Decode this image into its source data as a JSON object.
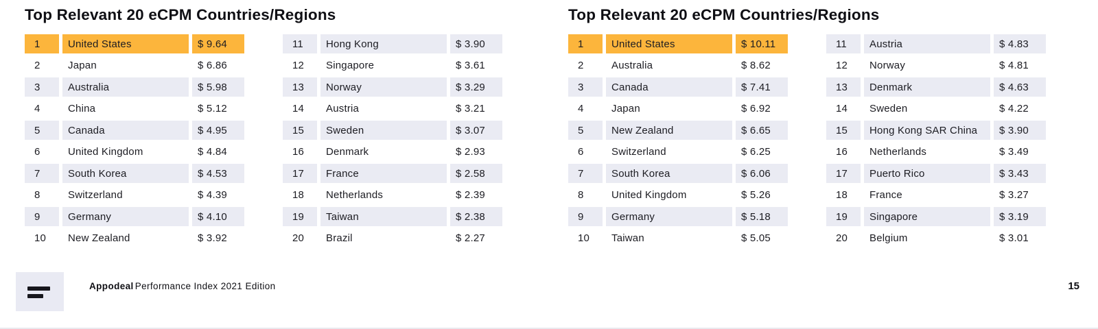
{
  "page": {
    "number": "15"
  },
  "footer": {
    "logo_icon": "appodeal-logo",
    "brand_bold": "Appodeal",
    "brand_rest": "Performance Index 2021 Edition"
  },
  "colors": {
    "highlight_orange": "#FCB53C",
    "row_stripe": "#EAEBF3",
    "text": "#1c1c22",
    "logo_box": "#E9EAF3"
  },
  "tables": [
    {
      "title": "Top Relevant 20 eCPM Countries/Regions",
      "rows": [
        {
          "rank": "1",
          "country": "United States",
          "value": "$ 9.64",
          "highlight": true
        },
        {
          "rank": "2",
          "country": "Japan",
          "value": "$ 6.86"
        },
        {
          "rank": "3",
          "country": "Australia",
          "value": "$ 5.98"
        },
        {
          "rank": "4",
          "country": "China",
          "value": "$ 5.12"
        },
        {
          "rank": "5",
          "country": "Canada",
          "value": "$ 4.95"
        },
        {
          "rank": "6",
          "country": "United Kingdom",
          "value": "$ 4.84"
        },
        {
          "rank": "7",
          "country": "South Korea",
          "value": "$ 4.53"
        },
        {
          "rank": "8",
          "country": "Switzerland",
          "value": "$ 4.39"
        },
        {
          "rank": "9",
          "country": "Germany",
          "value": "$ 4.10"
        },
        {
          "rank": "10",
          "country": "New Zealand",
          "value": "$ 3.92"
        },
        {
          "rank": "11",
          "country": "Hong Kong",
          "value": "$ 3.90"
        },
        {
          "rank": "12",
          "country": "Singapore",
          "value": "$ 3.61"
        },
        {
          "rank": "13",
          "country": "Norway",
          "value": "$ 3.29"
        },
        {
          "rank": "14",
          "country": "Austria",
          "value": "$ 3.21"
        },
        {
          "rank": "15",
          "country": "Sweden",
          "value": "$ 3.07"
        },
        {
          "rank": "16",
          "country": "Denmark",
          "value": "$ 2.93"
        },
        {
          "rank": "17",
          "country": "France",
          "value": "$ 2.58"
        },
        {
          "rank": "18",
          "country": "Netherlands",
          "value": "$ 2.39"
        },
        {
          "rank": "19",
          "country": "Taiwan",
          "value": "$ 2.38"
        },
        {
          "rank": "20",
          "country": "Brazil",
          "value": "$ 2.27"
        }
      ]
    },
    {
      "title": "Top Relevant 20 eCPM Countries/Regions",
      "rows": [
        {
          "rank": "1",
          "country": "United States",
          "value": "$ 10.11",
          "highlight": true
        },
        {
          "rank": "2",
          "country": "Australia",
          "value": "$ 8.62"
        },
        {
          "rank": "3",
          "country": "Canada",
          "value": "$ 7.41"
        },
        {
          "rank": "4",
          "country": "Japan",
          "value": "$ 6.92"
        },
        {
          "rank": "5",
          "country": "New Zealand",
          "value": "$ 6.65"
        },
        {
          "rank": "6",
          "country": "Switzerland",
          "value": "$ 6.25"
        },
        {
          "rank": "7",
          "country": "South Korea",
          "value": "$ 6.06"
        },
        {
          "rank": "8",
          "country": "United Kingdom",
          "value": "$ 5.26"
        },
        {
          "rank": "9",
          "country": "Germany",
          "value": "$ 5.18"
        },
        {
          "rank": "10",
          "country": "Taiwan",
          "value": "$ 5.05"
        },
        {
          "rank": "11",
          "country": "Austria",
          "value": "$ 4.83"
        },
        {
          "rank": "12",
          "country": "Norway",
          "value": "$ 4.81"
        },
        {
          "rank": "13",
          "country": "Denmark",
          "value": "$ 4.63"
        },
        {
          "rank": "14",
          "country": "Sweden",
          "value": "$ 4.22"
        },
        {
          "rank": "15",
          "country": "Hong Kong SAR China",
          "value": "$ 3.90"
        },
        {
          "rank": "16",
          "country": "Netherlands",
          "value": "$ 3.49"
        },
        {
          "rank": "17",
          "country": "Puerto Rico",
          "value": "$ 3.43"
        },
        {
          "rank": "18",
          "country": "France",
          "value": "$ 3.27"
        },
        {
          "rank": "19",
          "country": "Singapore",
          "value": "$ 3.19"
        },
        {
          "rank": "20",
          "country": "Belgium",
          "value": "$ 3.01"
        }
      ]
    }
  ]
}
